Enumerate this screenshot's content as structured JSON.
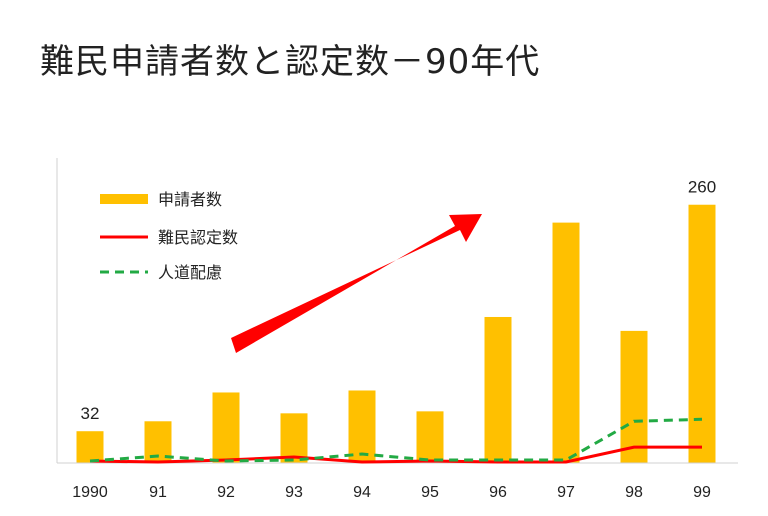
{
  "chart_data": {
    "type": "bar",
    "title": "難民申請者数と認定数－90年代",
    "categories": [
      "1990",
      "91",
      "92",
      "93",
      "94",
      "95",
      "96",
      "97",
      "98",
      "99"
    ],
    "series": [
      {
        "name": "申請者数",
        "kind": "bar",
        "color": "#FFC000",
        "values": [
          32,
          42,
          71,
          50,
          73,
          52,
          147,
          242,
          133,
          260
        ]
      },
      {
        "name": "難民認定数",
        "kind": "line",
        "color": "#FF0000",
        "dash": "solid",
        "values": [
          2,
          1,
          3,
          6,
          1,
          2,
          1,
          1,
          16,
          16
        ]
      },
      {
        "name": "人道配慮",
        "kind": "line",
        "color": "#22AA44",
        "dash": "dashed",
        "values": [
          2,
          7,
          2,
          3,
          9,
          3,
          3,
          3,
          42,
          44
        ]
      }
    ],
    "data_labels": [
      {
        "category": "1990",
        "text": "32"
      },
      {
        "category": "99",
        "text": "260"
      }
    ],
    "ylim": [
      0,
      300
    ],
    "grid": false,
    "legend_position": "top-left",
    "annotation": "trend arrow (red, pointing up-right)"
  }
}
